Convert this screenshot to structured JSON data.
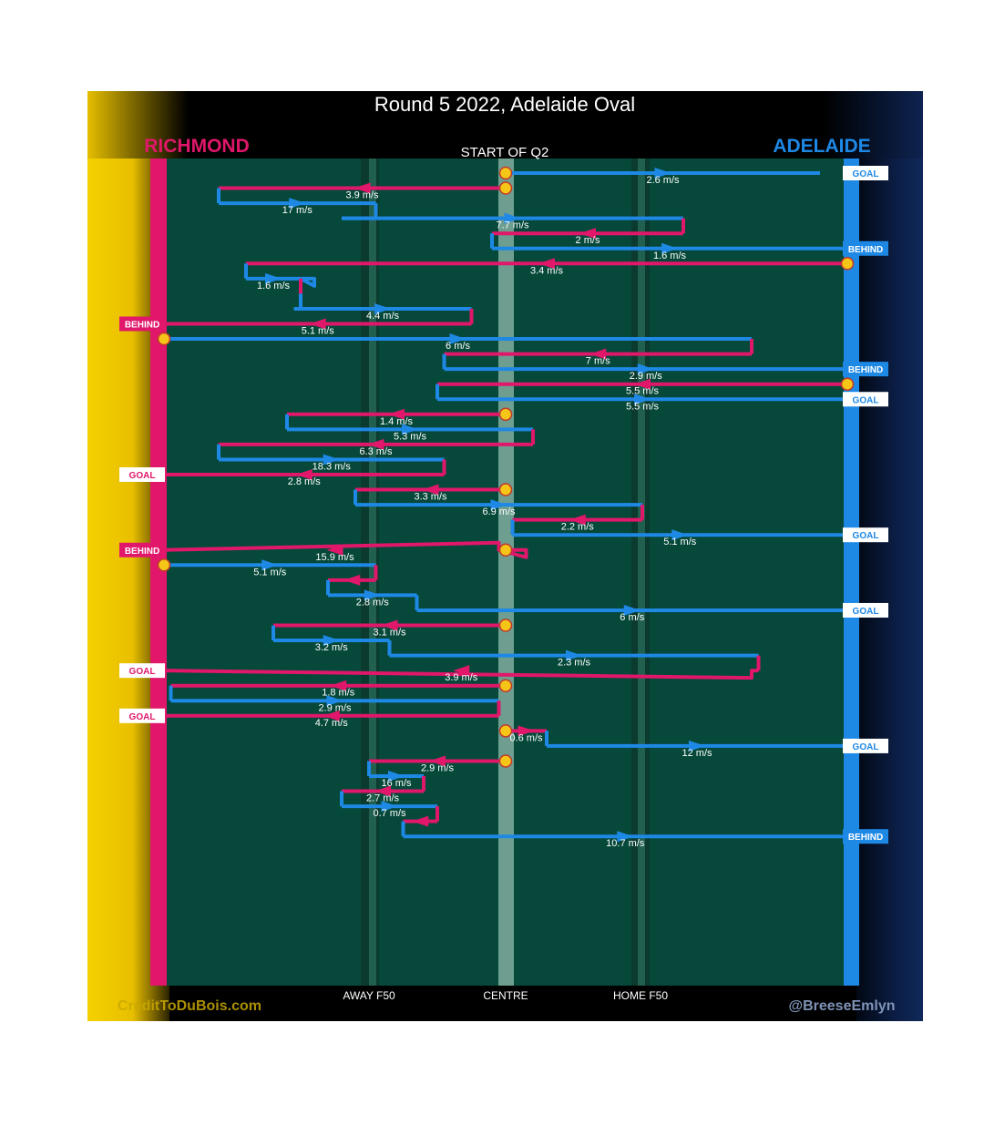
{
  "title": "Round 5 2022, Adelaide Oval",
  "subtitle": "START OF Q2",
  "teams": {
    "left": {
      "name": "RICHMOND",
      "color": "#E0176A"
    },
    "right": {
      "name": "ADELAIDE",
      "color": "#1E88E5"
    }
  },
  "colors": {
    "field": "#06493A",
    "goal_dot": "#F5C518",
    "left_bg": "#F2CC00",
    "right_bg": "#0D2350",
    "center_band": "#6E9E90"
  },
  "credits": {
    "left": "CreditToDuBois.com",
    "right": "@BreeseEmlyn"
  },
  "chart_data": {
    "type": "line",
    "title": "Round 5 2022, Adelaide Oval",
    "period": "START OF Q2",
    "x_axis": {
      "description": "Field position from Richmond goal (0) to Adelaide goal (100)",
      "range": [
        0,
        100
      ],
      "ticks": [
        {
          "label": "AWAY F50",
          "value": 30
        },
        {
          "label": "CENTRE",
          "value": 50
        },
        {
          "label": "HOME F50",
          "value": 70
        }
      ]
    },
    "chains": [
      {
        "team": "Adelaide",
        "pts": [
          50,
          96
        ],
        "speed": "2.6 m/s",
        "result": "GOAL"
      },
      {
        "team": "Richmond",
        "pts": [
          50,
          8
        ],
        "speed": "3.9 m/s"
      },
      {
        "team": "Adelaide",
        "pts": [
          8,
          31
        ],
        "speed": "17 m/s"
      },
      {
        "team": "Adelaide",
        "pts": [
          26,
          76
        ],
        "speed": "7.7 m/s"
      },
      {
        "team": "Richmond",
        "pts": [
          76,
          48
        ],
        "speed": "2 m/s"
      },
      {
        "team": "Adelaide",
        "pts": [
          48,
          100
        ],
        "speed": "1.6 m/s",
        "result": "BEHIND"
      },
      {
        "team": "Richmond",
        "pts": [
          100,
          12
        ],
        "speed": "3.4 m/s"
      },
      {
        "team": "Adelaide",
        "pts": [
          12,
          22,
          20
        ],
        "speed": "1.6 m/s"
      },
      {
        "team": "Richmond",
        "pts": [
          20
        ],
        "speed": ""
      },
      {
        "team": "Adelaide",
        "pts": [
          19,
          45
        ],
        "speed": "4.4 m/s"
      },
      {
        "team": "Richmond",
        "pts": [
          45,
          0
        ],
        "speed": "5.1 m/s",
        "result": "BEHIND"
      },
      {
        "team": "Adelaide",
        "pts": [
          0,
          86
        ],
        "speed": "6 m/s"
      },
      {
        "team": "Richmond",
        "pts": [
          86,
          41
        ],
        "speed": "7 m/s"
      },
      {
        "team": "Adelaide",
        "pts": [
          41,
          100
        ],
        "speed": "2.9 m/s",
        "result": "BEHIND"
      },
      {
        "team": "Richmond",
        "pts": [
          100,
          40
        ],
        "speed": "5.5 m/s"
      },
      {
        "team": "Adelaide",
        "pts": [
          40,
          100
        ],
        "speed": "5.5 m/s",
        "result": "GOAL"
      },
      {
        "team": "Richmond",
        "pts": [
          50,
          18
        ],
        "speed": "1.4 m/s"
      },
      {
        "team": "Adelaide",
        "pts": [
          18,
          54
        ],
        "speed": "5.3 m/s"
      },
      {
        "team": "Richmond",
        "pts": [
          54,
          8
        ],
        "speed": "6.3 m/s"
      },
      {
        "team": "Adelaide",
        "pts": [
          8,
          41
        ],
        "speed": "18.3 m/s"
      },
      {
        "team": "Richmond",
        "pts": [
          41,
          0
        ],
        "speed": "2.8 m/s",
        "result": "GOAL"
      },
      {
        "team": "Richmond",
        "pts": [
          50,
          28
        ],
        "speed": "3.3 m/s"
      },
      {
        "team": "Adelaide",
        "pts": [
          28,
          70
        ],
        "speed": "6.9 m/s"
      },
      {
        "team": "Richmond",
        "pts": [
          70,
          51
        ],
        "speed": "2.2 m/s"
      },
      {
        "team": "Adelaide",
        "pts": [
          51,
          100
        ],
        "speed": "5.1 m/s",
        "result": "GOAL"
      },
      {
        "team": "Richmond",
        "pts": [
          50,
          53,
          49,
          0
        ],
        "speed": "15.9 m/s",
        "result": "BEHIND"
      },
      {
        "team": "Adelaide",
        "pts": [
          0,
          31
        ],
        "speed": "5.1 m/s"
      },
      {
        "team": "Richmond",
        "pts": [
          31,
          24
        ],
        "speed": ""
      },
      {
        "team": "Adelaide",
        "pts": [
          24,
          37
        ],
        "speed": "2.8 m/s"
      },
      {
        "team": "Adelaide",
        "pts": [
          37,
          100
        ],
        "speed": "6 m/s",
        "result": "GOAL"
      },
      {
        "team": "Richmond",
        "pts": [
          50,
          16
        ],
        "speed": "3.1 m/s"
      },
      {
        "team": "Adelaide",
        "pts": [
          16,
          33
        ],
        "speed": "3.2 m/s"
      },
      {
        "team": "Adelaide",
        "pts": [
          33,
          87
        ],
        "speed": "2.3 m/s"
      },
      {
        "team": "Richmond",
        "pts": [
          87,
          86,
          0
        ],
        "speed": "3.9 m/s",
        "result": "GOAL"
      },
      {
        "team": "Richmond",
        "pts": [
          50,
          1
        ],
        "speed": "1.8 m/s"
      },
      {
        "team": "Adelaide",
        "pts": [
          1,
          49
        ],
        "speed": "2.9 m/s"
      },
      {
        "team": "Richmond",
        "pts": [
          49,
          0
        ],
        "speed": "4.7 m/s",
        "result": "GOAL"
      },
      {
        "team": "Richmond",
        "pts": [
          50,
          56
        ],
        "speed": "0.6 m/s"
      },
      {
        "team": "Adelaide",
        "pts": [
          56,
          100
        ],
        "speed": "12 m/s",
        "result": "GOAL"
      },
      {
        "team": "Richmond",
        "pts": [
          50,
          30
        ],
        "speed": "2.9 m/s"
      },
      {
        "team": "Adelaide",
        "pts": [
          30,
          38
        ],
        "speed": "16 m/s"
      },
      {
        "team": "Richmond",
        "pts": [
          38,
          26
        ],
        "speed": "2.7 m/s"
      },
      {
        "team": "Adelaide",
        "pts": [
          26,
          40
        ],
        "speed": "0.7 m/s"
      },
      {
        "team": "Richmond",
        "pts": [
          40,
          35
        ],
        "speed": ""
      },
      {
        "team": "Adelaide",
        "pts": [
          35,
          100
        ],
        "speed": "10.7 m/s",
        "result": "BEHIND"
      }
    ]
  }
}
